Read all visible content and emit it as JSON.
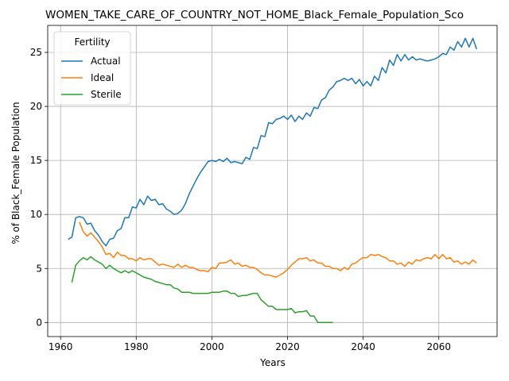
{
  "chart_data": {
    "type": "line",
    "title": "WOMEN_TAKE_CARE_OF_COUNTRY_NOT_HOME_Black_Female_Population_Sco",
    "xlabel": "Years",
    "ylabel": "% of Black_Female Population",
    "xlim": [
      1956.6,
      2075.4
    ],
    "ylim": [
      -1.3,
      27.5
    ],
    "xticks": [
      1960,
      1980,
      2000,
      2020,
      2040,
      2060
    ],
    "yticks": [
      0,
      5,
      10,
      15,
      20,
      25
    ],
    "grid": true,
    "legend": {
      "title": "Fertility",
      "placement": "top-left"
    },
    "series": [
      {
        "name": "Actual",
        "color": "#1f77b4",
        "x": [
          1962,
          1963,
          1964,
          1965,
          1966,
          1967,
          1968,
          1969,
          1970,
          1971,
          1972,
          1973,
          1974,
          1975,
          1976,
          1977,
          1978,
          1979,
          1980,
          1981,
          1982,
          1983,
          1984,
          1985,
          1986,
          1987,
          1988,
          1989,
          1990,
          1991,
          1992,
          1993,
          1994,
          1995,
          1996,
          1997,
          1998,
          1999,
          2000,
          2001,
          2002,
          2003,
          2004,
          2005,
          2006,
          2007,
          2008,
          2009,
          2010,
          2011,
          2012,
          2013,
          2014,
          2015,
          2016,
          2017,
          2018,
          2019,
          2020,
          2021,
          2022,
          2023,
          2024,
          2025,
          2026,
          2027,
          2028,
          2029,
          2030,
          2031,
          2032,
          2033,
          2034,
          2035,
          2036,
          2037,
          2038,
          2039,
          2040,
          2041,
          2042,
          2043,
          2044,
          2045,
          2046,
          2047,
          2048,
          2049,
          2050,
          2051,
          2052,
          2053,
          2054,
          2055,
          2056,
          2057,
          2058,
          2059,
          2060,
          2061,
          2062,
          2063,
          2064,
          2065,
          2066,
          2067,
          2068,
          2069,
          2070
        ],
        "values": [
          7.7,
          7.9,
          9.7,
          9.8,
          9.7,
          9.1,
          9.2,
          8.5,
          8.1,
          7.5,
          7.1,
          7.7,
          7.8,
          8.5,
          8.7,
          9.7,
          9.7,
          10.7,
          10.6,
          11.4,
          10.9,
          11.7,
          11.3,
          11.4,
          10.9,
          11.0,
          10.5,
          10.3,
          10.0,
          10.1,
          10.4,
          11.0,
          11.9,
          12.6,
          13.3,
          13.9,
          14.4,
          14.9,
          15.0,
          14.9,
          15.1,
          14.9,
          15.2,
          14.8,
          14.9,
          14.8,
          14.7,
          15.3,
          15.1,
          16.2,
          16.1,
          17.3,
          17.2,
          18.5,
          18.4,
          18.8,
          18.9,
          19.1,
          18.8,
          19.2,
          18.6,
          19.1,
          18.8,
          19.4,
          19.1,
          19.9,
          19.8,
          20.6,
          20.8,
          21.5,
          21.8,
          22.3,
          22.4,
          22.6,
          22.4,
          22.6,
          22.1,
          22.5,
          21.9,
          22.3,
          21.9,
          22.8,
          22.4,
          23.6,
          23.1,
          24.3,
          23.8,
          24.8,
          24.2,
          24.8,
          24.3,
          24.6,
          24.3,
          24.4,
          24.3,
          24.2,
          24.3,
          24.4,
          24.6,
          24.9,
          24.8,
          25.5,
          25.2,
          26.0,
          25.5,
          26.3,
          25.5,
          26.3,
          25.3
        ]
      },
      {
        "name": "Ideal",
        "color": "#ff7f0e",
        "x": [
          1965,
          1966,
          1967,
          1968,
          1969,
          1970,
          1971,
          1972,
          1973,
          1974,
          1975,
          1976,
          1977,
          1978,
          1979,
          1980,
          1981,
          1982,
          1983,
          1984,
          1985,
          1986,
          1987,
          1988,
          1989,
          1990,
          1991,
          1992,
          1993,
          1994,
          1995,
          1996,
          1997,
          1998,
          1999,
          2000,
          2001,
          2002,
          2003,
          2004,
          2005,
          2006,
          2007,
          2008,
          2009,
          2010,
          2011,
          2012,
          2013,
          2014,
          2015,
          2016,
          2017,
          2018,
          2019,
          2020,
          2021,
          2022,
          2023,
          2024,
          2025,
          2026,
          2027,
          2028,
          2029,
          2030,
          2031,
          2032,
          2033,
          2034,
          2035,
          2036,
          2037,
          2038,
          2039,
          2040,
          2041,
          2042,
          2043,
          2044,
          2045,
          2046,
          2047,
          2048,
          2049,
          2050,
          2051,
          2052,
          2053,
          2054,
          2055,
          2056,
          2057,
          2058,
          2059,
          2060,
          2061,
          2062,
          2063,
          2064,
          2065,
          2066,
          2067,
          2068,
          2069,
          2070
        ],
        "values": [
          9.3,
          8.4,
          8.0,
          8.3,
          7.9,
          7.5,
          7.0,
          6.3,
          6.4,
          6.0,
          6.5,
          6.2,
          6.2,
          5.9,
          5.9,
          5.7,
          6.0,
          5.8,
          5.9,
          5.9,
          5.6,
          5.3,
          5.4,
          5.3,
          5.2,
          5.1,
          5.4,
          5.1,
          5.3,
          5.1,
          5.1,
          4.9,
          4.8,
          4.8,
          4.7,
          5.1,
          5.0,
          5.5,
          5.5,
          5.6,
          5.8,
          5.4,
          5.5,
          5.2,
          5.3,
          5.1,
          5.1,
          4.9,
          4.6,
          4.4,
          4.4,
          4.3,
          4.2,
          4.4,
          4.6,
          4.9,
          5.3,
          5.6,
          5.9,
          5.9,
          6.0,
          5.7,
          5.8,
          5.5,
          5.5,
          5.2,
          5.2,
          5.0,
          5.0,
          4.8,
          5.1,
          4.9,
          5.4,
          5.5,
          5.8,
          6.0,
          6.0,
          6.3,
          6.2,
          6.3,
          6.1,
          6.0,
          5.7,
          5.7,
          5.4,
          5.5,
          5.2,
          5.6,
          5.4,
          5.8,
          5.7,
          5.9,
          6.0,
          5.9,
          6.3,
          5.9,
          6.3,
          5.9,
          6.0,
          5.6,
          5.7,
          5.4,
          5.6,
          5.4,
          5.8,
          5.5
        ]
      },
      {
        "name": "Sterile",
        "color": "#2ca02c",
        "x": [
          1963,
          1964,
          1965,
          1966,
          1967,
          1968,
          1969,
          1970,
          1971,
          1972,
          1973,
          1974,
          1975,
          1976,
          1977,
          1978,
          1979,
          1980,
          1981,
          1982,
          1983,
          1984,
          1985,
          1986,
          1987,
          1988,
          1989,
          1990,
          1991,
          1992,
          1993,
          1994,
          1995,
          1996,
          1997,
          1998,
          1999,
          2000,
          2001,
          2002,
          2003,
          2004,
          2005,
          2006,
          2007,
          2008,
          2009,
          2010,
          2011,
          2012,
          2013,
          2014,
          2015,
          2016,
          2017,
          2018,
          2019,
          2020,
          2021,
          2022,
          2023,
          2024,
          2025,
          2026,
          2027,
          2028,
          2029,
          2030,
          2031,
          2032
        ],
        "values": [
          3.7,
          5.3,
          5.7,
          6.0,
          5.8,
          6.1,
          5.8,
          5.6,
          5.4,
          5.0,
          5.3,
          5.0,
          4.8,
          4.6,
          4.8,
          4.6,
          4.8,
          4.6,
          4.4,
          4.2,
          4.1,
          4.0,
          3.8,
          3.7,
          3.6,
          3.5,
          3.5,
          3.2,
          3.1,
          2.8,
          2.8,
          2.8,
          2.7,
          2.7,
          2.7,
          2.7,
          2.7,
          2.8,
          2.8,
          2.8,
          2.9,
          2.9,
          2.7,
          2.7,
          2.4,
          2.5,
          2.5,
          2.6,
          2.7,
          2.7,
          2.1,
          1.8,
          1.5,
          1.5,
          1.2,
          1.2,
          1.2,
          1.2,
          1.3,
          0.9,
          1.0,
          1.0,
          1.1,
          0.6,
          0.6,
          0.0,
          0.0,
          0.0,
          0.0,
          0.0
        ]
      }
    ]
  }
}
